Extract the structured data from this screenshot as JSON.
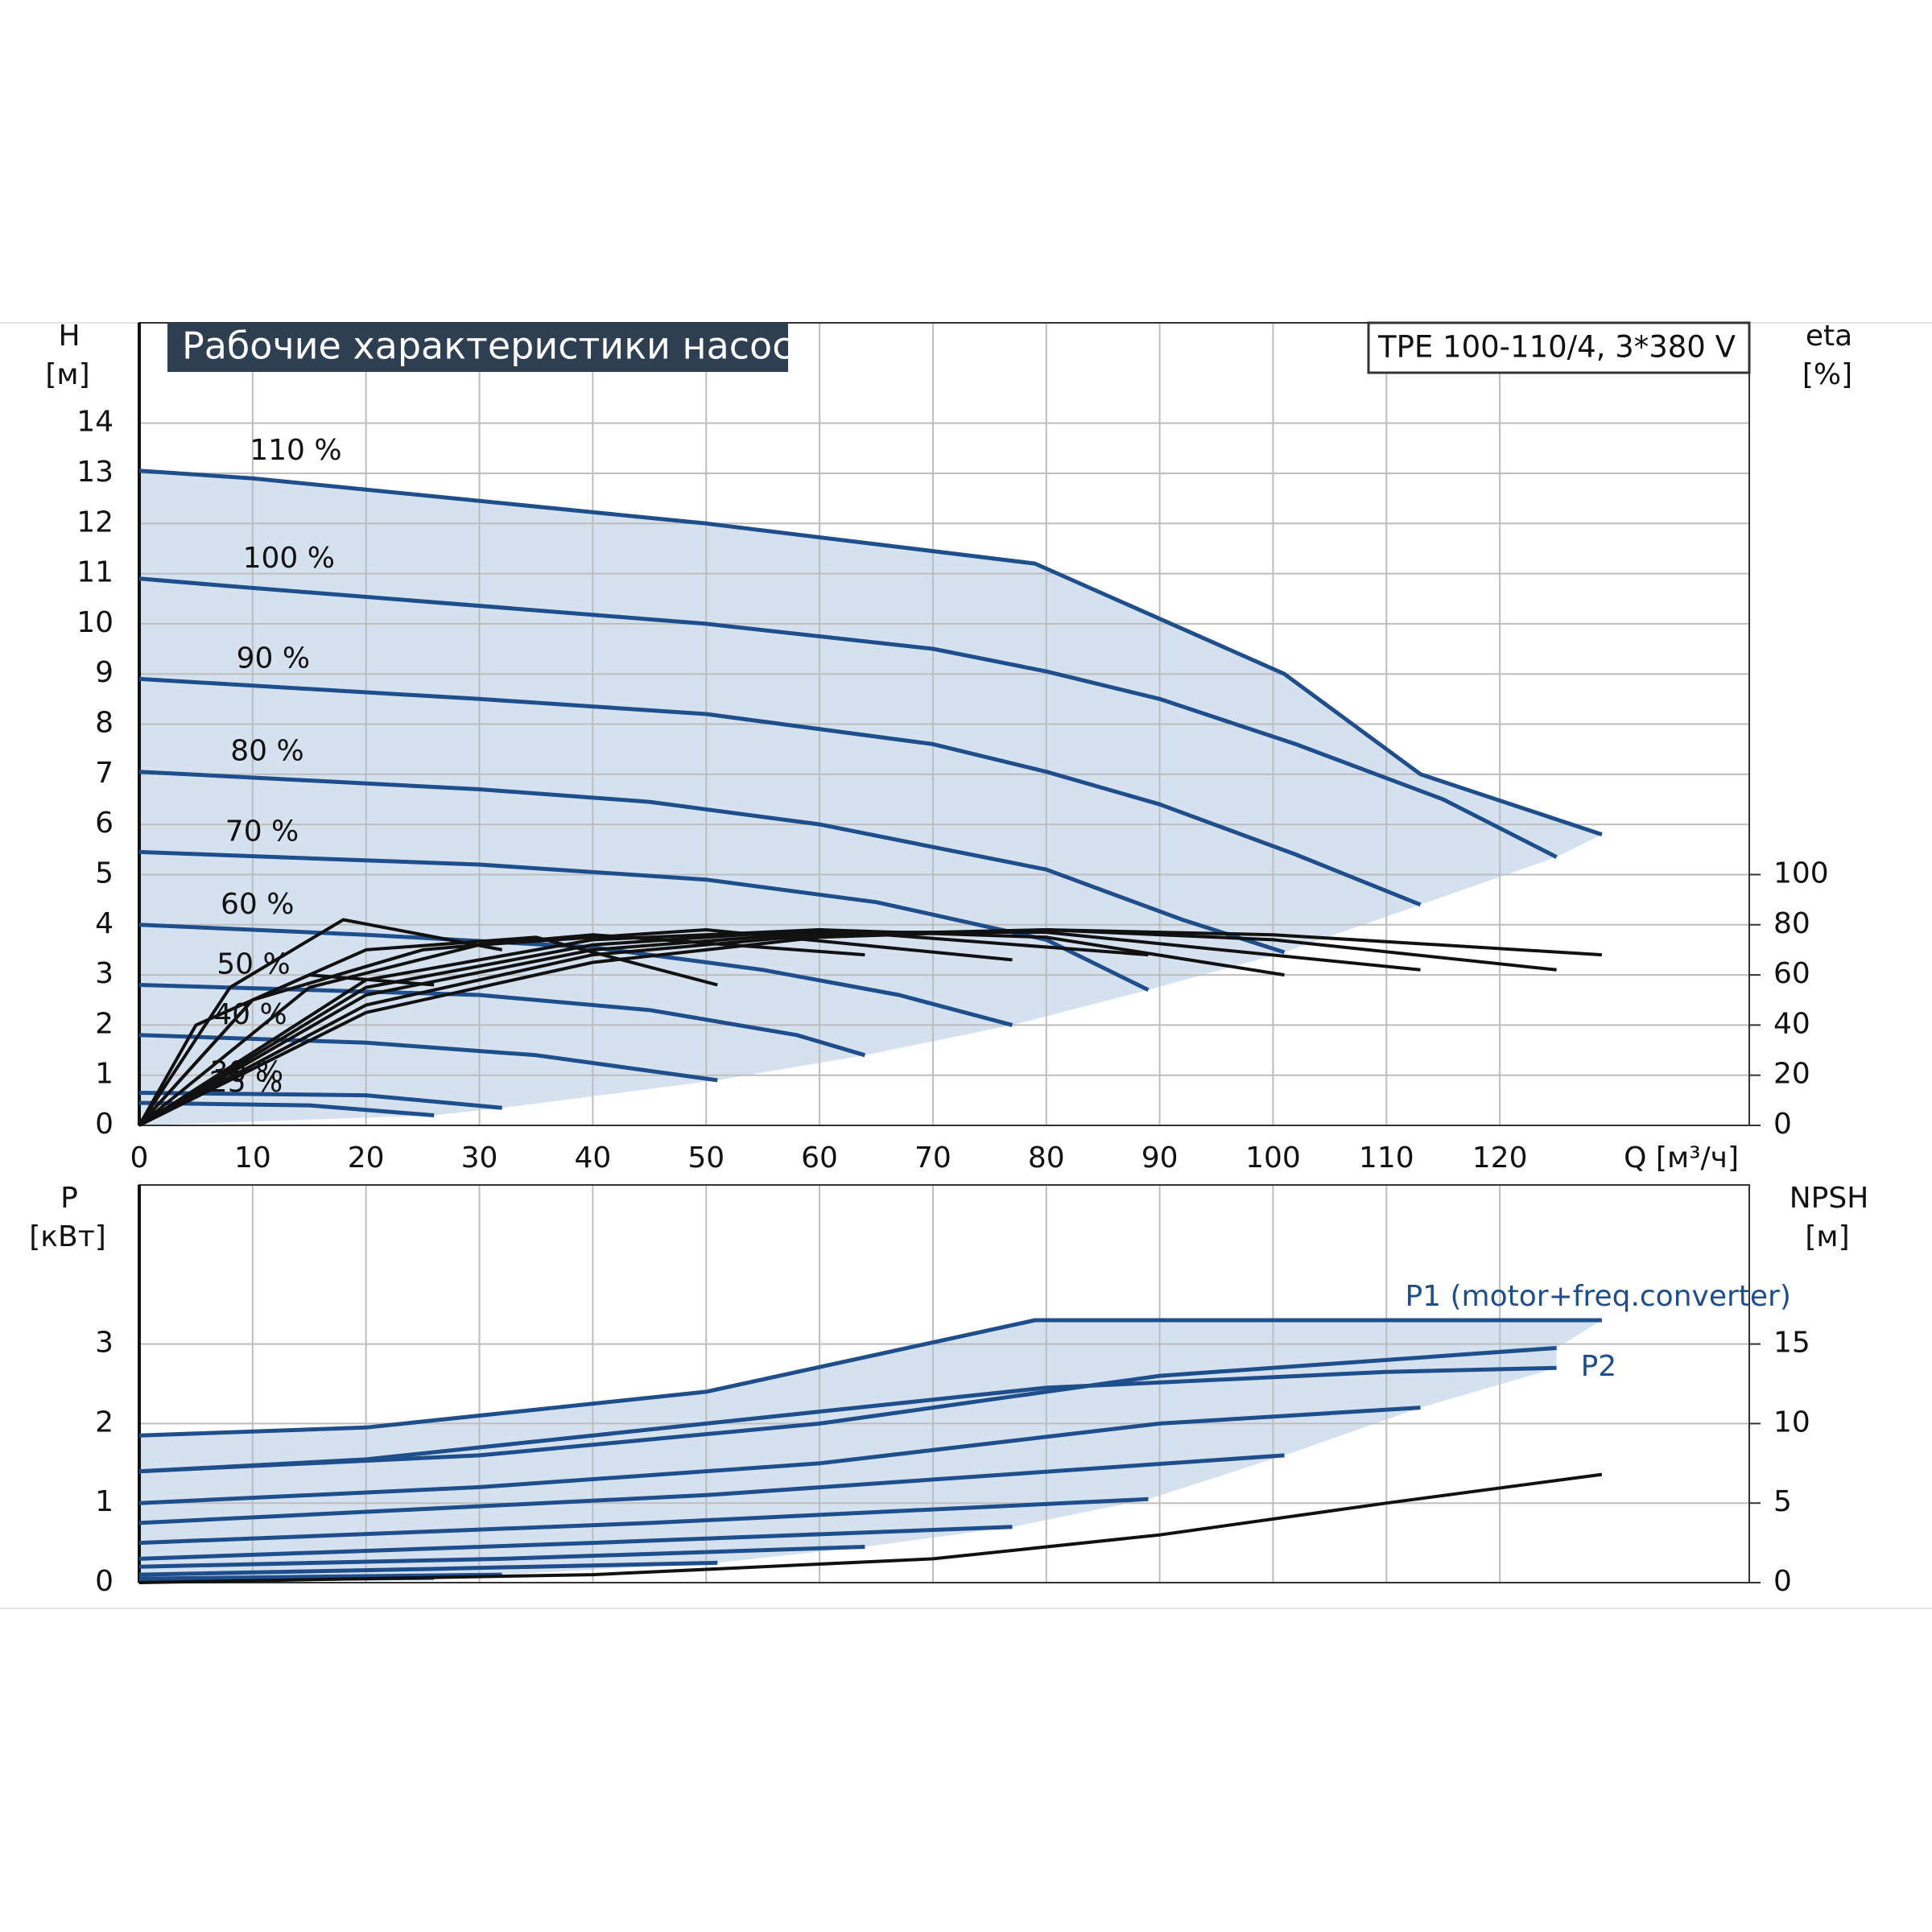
{
  "chart_data": [
    {
      "type": "line",
      "title": "Рабочие характеристики насоса",
      "subtitle": "TPE 100-110/4, 3*380 V",
      "ylabel": "H",
      "yunit": "[м]",
      "y2label": "eta",
      "y2unit": "[%]",
      "xlabel": "Q [м³/ч]",
      "xlim": [
        0,
        142
      ],
      "xticks": [
        0,
        10,
        20,
        30,
        40,
        50,
        60,
        70,
        80,
        90,
        100,
        110,
        120
      ],
      "ylim": [
        0,
        16
      ],
      "yticks": [
        0,
        1,
        2,
        3,
        4,
        5,
        6,
        7,
        8,
        9,
        10,
        11,
        12,
        13,
        14
      ],
      "y2lim": [
        0,
        320
      ],
      "y2ticks": [
        0,
        20,
        40,
        60,
        80,
        100
      ],
      "grid": true,
      "xtick_labels": true,
      "shading": "#d5e1ef",
      "left_fill": "#eef6fd",
      "label_position": "start",
      "series": [
        {
          "name": "110 %",
          "color": "#1f4e8c",
          "x": [
            0,
            10,
            50,
            79,
            101,
            113,
            129
          ],
          "values": [
            13.05,
            12.9,
            12.0,
            11.2,
            9.0,
            7.0,
            5.8
          ]
        },
        {
          "name": "100 %",
          "color": "#1f4e8c",
          "x": [
            0,
            8,
            50,
            70,
            80,
            90,
            102,
            115,
            125
          ],
          "values": [
            10.9,
            10.75,
            10.0,
            9.5,
            9.05,
            8.5,
            7.6,
            6.5,
            5.35
          ]
        },
        {
          "name": "90 %",
          "color": "#1f4e8c",
          "x": [
            0,
            30,
            50,
            70,
            80,
            90,
            102,
            113
          ],
          "values": [
            8.9,
            8.5,
            8.2,
            7.6,
            7.05,
            6.4,
            5.4,
            4.4
          ]
        },
        {
          "name": "80 %",
          "color": "#1f4e8c",
          "x": [
            0,
            30,
            45,
            60,
            70,
            80,
            92,
            101
          ],
          "values": [
            7.05,
            6.7,
            6.45,
            6.0,
            5.55,
            5.1,
            4.1,
            3.45
          ]
        },
        {
          "name": "70 %",
          "color": "#1f4e8c",
          "x": [
            0,
            30,
            50,
            65,
            80,
            89
          ],
          "values": [
            5.45,
            5.2,
            4.9,
            4.45,
            3.7,
            2.7
          ]
        },
        {
          "name": "60 %",
          "color": "#1f4e8c",
          "x": [
            0,
            20,
            40,
            55,
            67,
            77
          ],
          "values": [
            4.0,
            3.8,
            3.55,
            3.1,
            2.6,
            2.0
          ]
        },
        {
          "name": "50 %",
          "color": "#1f4e8c",
          "x": [
            0,
            30,
            45,
            58,
            64
          ],
          "values": [
            2.8,
            2.6,
            2.3,
            1.8,
            1.4
          ]
        },
        {
          "name": "40 %",
          "color": "#1f4e8c",
          "x": [
            0,
            20,
            35,
            51
          ],
          "values": [
            1.8,
            1.65,
            1.4,
            0.9
          ]
        },
        {
          "name": "30 %",
          "color": "#1f4e8c",
          "x": [
            0,
            20,
            32
          ],
          "values": [
            0.65,
            0.6,
            0.35
          ]
        },
        {
          "name": "25 %",
          "color": "#1f4e8c",
          "x": [
            0,
            15,
            26
          ],
          "values": [
            0.45,
            0.4,
            0.2
          ]
        },
        {
          "color": "#111111",
          "axis": "y2",
          "x": [
            0,
            20,
            40,
            60,
            80,
            100,
            129
          ],
          "values": [
            0,
            45,
            65,
            75,
            78,
            76,
            68
          ]
        },
        {
          "color": "#111111",
          "axis": "y2",
          "x": [
            0,
            20,
            40,
            60,
            80,
            100,
            125
          ],
          "values": [
            0,
            48,
            68,
            76,
            78,
            74,
            62
          ]
        },
        {
          "color": "#111111",
          "axis": "y2",
          "x": [
            0,
            20,
            40,
            60,
            80,
            113
          ],
          "values": [
            0,
            52,
            70,
            77,
            77,
            62
          ]
        },
        {
          "color": "#111111",
          "axis": "y2",
          "x": [
            0,
            20,
            40,
            60,
            80,
            101
          ],
          "values": [
            0,
            55,
            72,
            78,
            75,
            60
          ]
        },
        {
          "color": "#111111",
          "axis": "y2",
          "x": [
            0,
            20,
            40,
            60,
            89
          ],
          "values": [
            0,
            58,
            74,
            78,
            68
          ]
        },
        {
          "color": "#111111",
          "axis": "y2",
          "x": [
            0,
            15,
            30,
            50,
            77
          ],
          "values": [
            0,
            55,
            72,
            78,
            66
          ]
        },
        {
          "color": "#111111",
          "axis": "y2",
          "x": [
            0,
            10,
            25,
            40,
            64
          ],
          "values": [
            0,
            50,
            70,
            76,
            68
          ]
        },
        {
          "color": "#111111",
          "axis": "y2",
          "x": [
            0,
            10,
            20,
            35,
            51
          ],
          "values": [
            0,
            50,
            70,
            75,
            56
          ]
        },
        {
          "color": "#111111",
          "axis": "y2",
          "x": [
            0,
            8,
            18,
            32
          ],
          "values": [
            0,
            55,
            82,
            70
          ]
        },
        {
          "color": "#111111",
          "axis": "y2",
          "x": [
            0,
            5,
            15,
            26
          ],
          "values": [
            0,
            40,
            60,
            56
          ]
        }
      ]
    },
    {
      "type": "line",
      "ylabel": "P",
      "yunit": "[кВт]",
      "y2label": "NPSH",
      "y2unit": "[м]",
      "xlim": [
        0,
        142
      ],
      "xticks": [
        0,
        10,
        20,
        30,
        40,
        50,
        60,
        70,
        80,
        90,
        100,
        110,
        120
      ],
      "ylim": [
        0,
        5
      ],
      "yticks": [
        0,
        1,
        2,
        3
      ],
      "y2lim": [
        0,
        25
      ],
      "y2ticks": [
        0,
        5,
        10,
        15
      ],
      "grid": true,
      "xtick_labels": false,
      "shading": "#d5e1ef",
      "label_position": "end",
      "series": [
        {
          "name": "P1 (motor+freq.converter)",
          "label_side": "above",
          "color": "#1f4e8c",
          "x": [
            0,
            20,
            50,
            79,
            129
          ],
          "values": [
            1.85,
            1.95,
            2.4,
            3.3,
            3.3
          ]
        },
        {
          "color": "#1f4e8c",
          "x": [
            0,
            30,
            60,
            90,
            125
          ],
          "values": [
            1.4,
            1.6,
            2.0,
            2.6,
            2.95
          ]
        },
        {
          "name": "P2",
          "label_side": "right",
          "color": "#1f4e8c",
          "x": [
            0,
            20,
            50,
            80,
            110,
            125
          ],
          "values": [
            1.4,
            1.55,
            2.0,
            2.45,
            2.65,
            2.7
          ]
        },
        {
          "color": "#1f4e8c",
          "x": [
            0,
            30,
            60,
            90,
            113
          ],
          "values": [
            1.0,
            1.2,
            1.5,
            2.0,
            2.2
          ]
        },
        {
          "color": "#1f4e8c",
          "x": [
            0,
            50,
            101
          ],
          "values": [
            0.75,
            1.1,
            1.6
          ]
        },
        {
          "color": "#1f4e8c",
          "x": [
            0,
            45,
            89
          ],
          "values": [
            0.5,
            0.75,
            1.05
          ]
        },
        {
          "color": "#1f4e8c",
          "x": [
            0,
            40,
            77
          ],
          "values": [
            0.3,
            0.5,
            0.7
          ]
        },
        {
          "color": "#1f4e8c",
          "x": [
            0,
            32,
            64
          ],
          "values": [
            0.2,
            0.3,
            0.45
          ]
        },
        {
          "color": "#1f4e8c",
          "x": [
            0,
            25,
            51
          ],
          "values": [
            0.1,
            0.17,
            0.25
          ]
        },
        {
          "color": "#1f4e8c",
          "x": [
            0,
            32
          ],
          "values": [
            0.05,
            0.1
          ]
        },
        {
          "color": "#1f4e8c",
          "x": [
            0,
            26
          ],
          "values": [
            0.03,
            0.06
          ]
        },
        {
          "color": "#111111",
          "axis": "y2",
          "x": [
            0,
            40,
            70,
            90,
            110,
            129
          ],
          "values": [
            0,
            0.5,
            1.5,
            3.0,
            5.0,
            6.8
          ]
        }
      ]
    }
  ]
}
